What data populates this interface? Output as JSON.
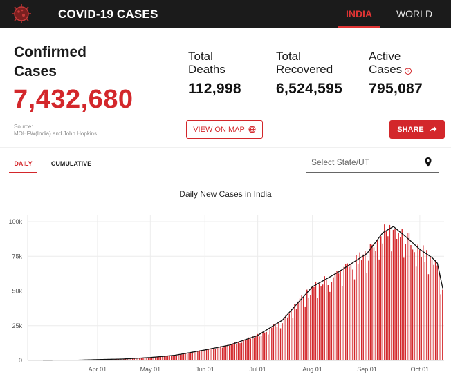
{
  "header": {
    "title": "COVID-19 CASES",
    "tabs": [
      {
        "label": "INDIA",
        "active": true
      },
      {
        "label": "WORLD",
        "active": false
      }
    ],
    "logo_icon": "virus-icon"
  },
  "stats": {
    "confirmed": {
      "label": "Confirmed Cases",
      "value": "7,432,680"
    },
    "deaths": {
      "label_line1": "Total",
      "label_line2": "Deaths",
      "value": "112,998"
    },
    "recovered": {
      "label_line1": "Total",
      "label_line2": "Recovered",
      "value": "6,524,595"
    },
    "active": {
      "label_line1": "Active",
      "label_line2": "Cases",
      "value": "795,087",
      "info_icon": "?"
    },
    "source_line1": "Source:",
    "source_line2": "MOHFW(India) and John Hopkins",
    "map_button": "VIEW ON MAP",
    "share_button": "SHARE"
  },
  "filters": {
    "tabs": [
      {
        "label": "DAILY",
        "active": true
      },
      {
        "label": "CUMULATIVE",
        "active": false
      }
    ],
    "state_select": {
      "placeholder": "Select State/UT"
    }
  },
  "colors": {
    "accent": "#d3272b",
    "header_bg": "#1b1b1b",
    "bar": "#d3272b",
    "line": "#111111"
  },
  "chart_data": {
    "type": "bar",
    "title": "Daily New Cases in India",
    "xlabel": "",
    "ylabel": "",
    "ylim": [
      0,
      100000
    ],
    "y_ticks": [
      {
        "value": 0,
        "label": "0"
      },
      {
        "value": 25000,
        "label": "25k"
      },
      {
        "value": 50000,
        "label": "50k"
      },
      {
        "value": 75000,
        "label": "75k"
      },
      {
        "value": 100000,
        "label": "100k"
      }
    ],
    "x_start": "2020-03-01",
    "x_end": "2020-10-14",
    "x_ticks": [
      {
        "date": "2020-04-01",
        "label": "Apr 01"
      },
      {
        "date": "2020-05-01",
        "label": "May 01"
      },
      {
        "date": "2020-06-01",
        "label": "Jun 01"
      },
      {
        "date": "2020-07-01",
        "label": "Jul 01"
      },
      {
        "date": "2020-08-01",
        "label": "Aug 01"
      },
      {
        "date": "2020-09-01",
        "label": "Sep 01"
      },
      {
        "date": "2020-10-01",
        "label": "Oct 01"
      }
    ],
    "trend_points": [
      {
        "date": "2020-03-01",
        "value": 0
      },
      {
        "date": "2020-03-20",
        "value": 150
      },
      {
        "date": "2020-04-01",
        "value": 600
      },
      {
        "date": "2020-04-15",
        "value": 1000
      },
      {
        "date": "2020-05-01",
        "value": 2100
      },
      {
        "date": "2020-05-15",
        "value": 3700
      },
      {
        "date": "2020-06-01",
        "value": 7500
      },
      {
        "date": "2020-06-15",
        "value": 11000
      },
      {
        "date": "2020-07-01",
        "value": 18000
      },
      {
        "date": "2020-07-15",
        "value": 29000
      },
      {
        "date": "2020-08-01",
        "value": 53000
      },
      {
        "date": "2020-08-15",
        "value": 63000
      },
      {
        "date": "2020-09-01",
        "value": 77000
      },
      {
        "date": "2020-09-10",
        "value": 92000
      },
      {
        "date": "2020-09-16",
        "value": 96500
      },
      {
        "date": "2020-09-25",
        "value": 87000
      },
      {
        "date": "2020-10-01",
        "value": 80000
      },
      {
        "date": "2020-10-08",
        "value": 74000
      },
      {
        "date": "2020-10-11",
        "value": 70000
      },
      {
        "date": "2020-10-14",
        "value": 52000
      }
    ],
    "grid": true
  }
}
